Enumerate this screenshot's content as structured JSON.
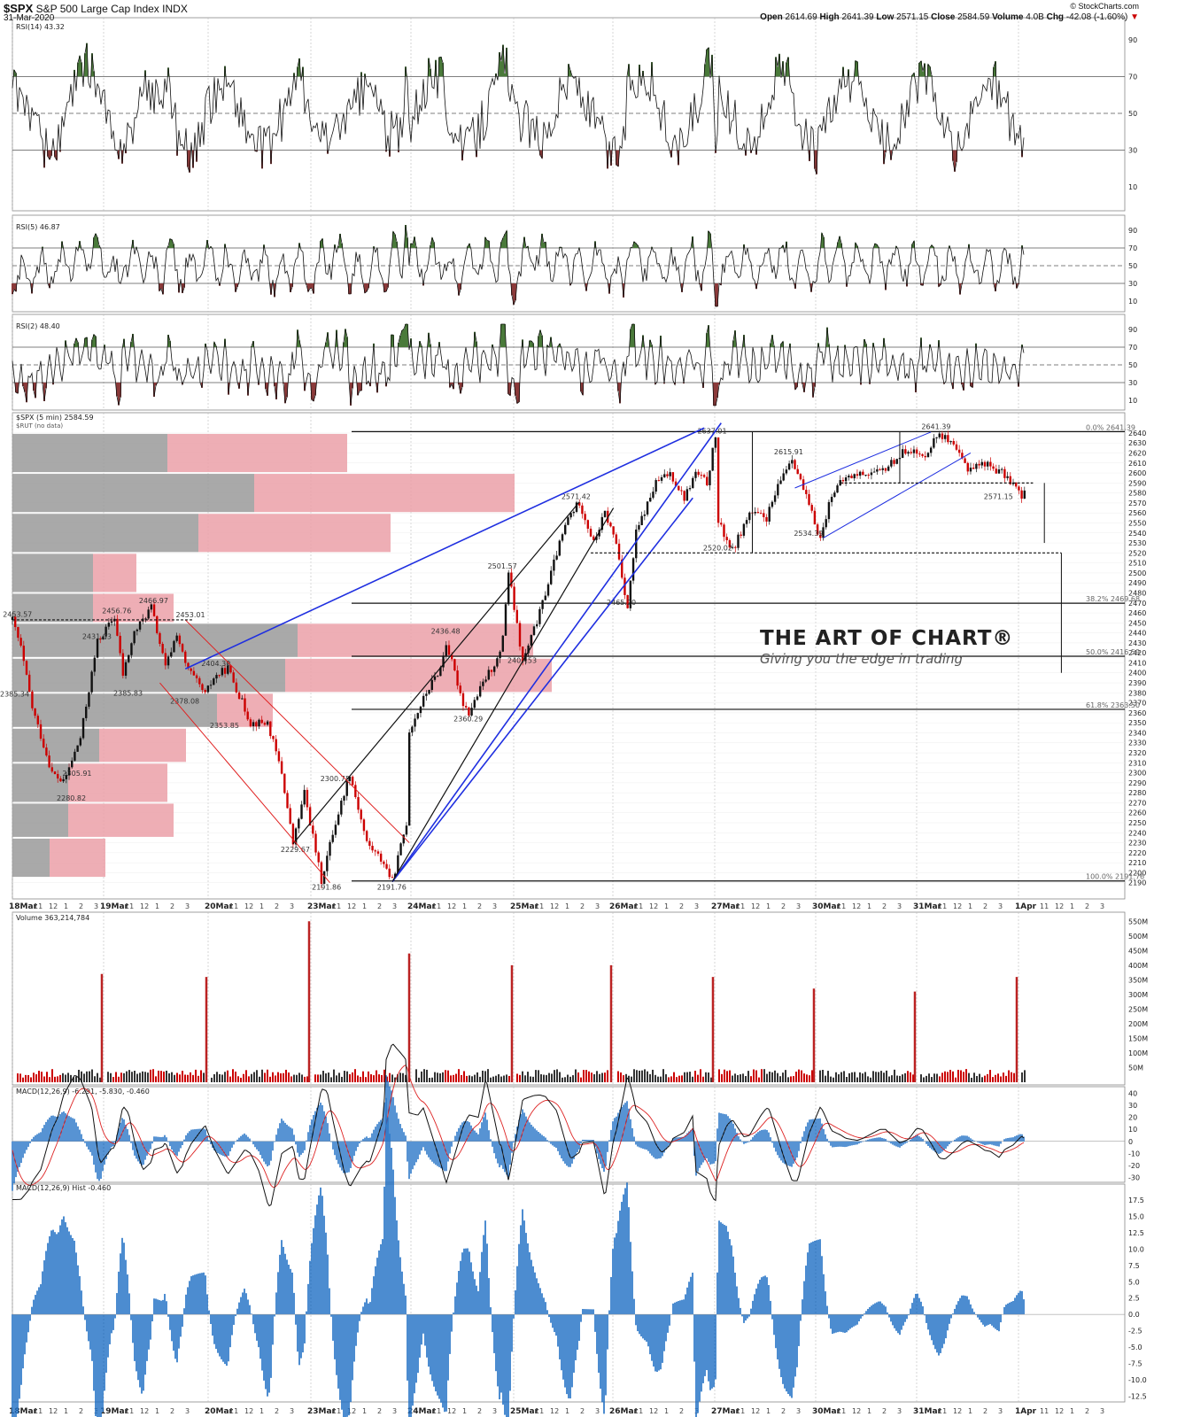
{
  "header": {
    "symbol": "$SPX",
    "name": "S&P 500 Large Cap Index",
    "exchange": "INDX",
    "date": "31-Mar-2020",
    "source": "© StockCharts.com",
    "open_label": "Open",
    "open": "2614.69",
    "high_label": "High",
    "high": "2641.39",
    "low_label": "Low",
    "low": "2571.15",
    "close_label": "Close",
    "close": "2584.59",
    "volume_label": "Volume",
    "volume": "4.0B",
    "chg_label": "Chg",
    "chg": "-42.08 (-1.60%)"
  },
  "watermark": {
    "title": "THE ART OF CHART®",
    "subtitle": "Giving you the edge in trading"
  },
  "colors": {
    "up": "#111111",
    "down": "#cc0000",
    "ob": "#4a7a3a",
    "os": "#8b3a3a",
    "blue": "#1f2fe0",
    "red_line": "#e02020",
    "vbp_red": "#eba0a8",
    "vbp_gray": "#9a9a9a",
    "macd_hist": "#1f6fc4"
  },
  "chart_data": [
    {
      "type": "line",
      "title": "RSI(14) 43.32",
      "ylim": [
        0,
        100
      ],
      "yticks": [
        10,
        30,
        50,
        70,
        90
      ],
      "levels": [
        30,
        50,
        70
      ],
      "last": 43.32
    },
    {
      "type": "line",
      "title": "RSI(5) 46.87",
      "ylim": [
        0,
        100
      ],
      "yticks": [
        10,
        30,
        50,
        70,
        90
      ],
      "levels": [
        30,
        50,
        70
      ],
      "last": 46.87
    },
    {
      "type": "line",
      "title": "RSI(2) 48.40",
      "ylim": [
        0,
        100
      ],
      "yticks": [
        10,
        30,
        50,
        70,
        90
      ],
      "levels": [
        30,
        50,
        70
      ],
      "last": 48.4
    },
    {
      "type": "candlestick",
      "title": "$SPX (5 min) 2584.59",
      "overlay": "$RUT (no data)",
      "ylim": [
        2180,
        2655
      ],
      "yticks": [
        2190,
        2200,
        2210,
        2220,
        2230,
        2240,
        2250,
        2260,
        2270,
        2280,
        2290,
        2300,
        2310,
        2320,
        2330,
        2340,
        2350,
        2360,
        2370,
        2380,
        2390,
        2400,
        2410,
        2420,
        2430,
        2440,
        2450,
        2460,
        2470,
        2480,
        2490,
        2500,
        2510,
        2520,
        2530,
        2540,
        2550,
        2560,
        2570,
        2580,
        2590,
        2600,
        2610,
        2620,
        2630,
        2640
      ],
      "days": [
        "18Mar",
        "19Mar",
        "20Mar",
        "23Mar",
        "24Mar",
        "25Mar",
        "26Mar",
        "27Mar",
        "30Mar",
        "31Mar",
        "1Apr"
      ],
      "hour_ticks": [
        "11",
        "12",
        "1",
        "2",
        "3"
      ],
      "path": [
        [
          0,
          2453
        ],
        [
          0.15,
          2425
        ],
        [
          0.35,
          2365
        ],
        [
          0.7,
          2300
        ],
        [
          0.9,
          2290
        ],
        [
          1.2,
          2335
        ],
        [
          1.5,
          2431
        ],
        [
          1.8,
          2456
        ],
        [
          1.95,
          2398
        ],
        [
          2.15,
          2440
        ],
        [
          2.45,
          2466
        ],
        [
          2.7,
          2405
        ],
        [
          2.9,
          2440
        ],
        [
          3.05,
          2408
        ],
        [
          3.4,
          2378
        ],
        [
          3.55,
          2395
        ],
        [
          3.8,
          2405
        ],
        [
          4.2,
          2350
        ],
        [
          4.5,
          2350
        ],
        [
          4.75,
          2300
        ],
        [
          4.95,
          2229
        ],
        [
          5.15,
          2280
        ],
        [
          5.45,
          2192
        ],
        [
          5.65,
          2240
        ],
        [
          5.95,
          2300
        ],
        [
          6.25,
          2230
        ],
        [
          6.55,
          2210
        ],
        [
          6.7,
          2191
        ],
        [
          6.95,
          2250
        ],
        [
          6.98,
          2340
        ],
        [
          7.3,
          2380
        ],
        [
          7.55,
          2405
        ],
        [
          7.65,
          2430
        ],
        [
          7.95,
          2370
        ],
        [
          8.05,
          2360
        ],
        [
          8.35,
          2395
        ],
        [
          8.62,
          2420
        ],
        [
          8.75,
          2501
        ],
        [
          9.0,
          2410
        ],
        [
          9.3,
          2460
        ],
        [
          9.6,
          2520
        ],
        [
          9.8,
          2555
        ],
        [
          10.0,
          2571
        ],
        [
          10.25,
          2530
        ],
        [
          10.45,
          2560
        ],
        [
          10.65,
          2530
        ],
        [
          10.85,
          2465
        ],
        [
          11.0,
          2540
        ],
        [
          11.35,
          2590
        ],
        [
          11.6,
          2600
        ],
        [
          11.85,
          2575
        ],
        [
          12.05,
          2600
        ],
        [
          12.25,
          2590
        ],
        [
          12.4,
          2637
        ],
        [
          12.45,
          2550
        ],
        [
          12.7,
          2522
        ],
        [
          13.0,
          2560
        ],
        [
          13.3,
          2555
        ],
        [
          13.6,
          2600
        ],
        [
          13.75,
          2616
        ],
        [
          14.0,
          2575
        ],
        [
          14.25,
          2534
        ],
        [
          14.45,
          2580
        ],
        [
          14.7,
          2595
        ],
        [
          15.0,
          2600
        ],
        [
          15.3,
          2600
        ],
        [
          15.5,
          2610
        ],
        [
          15.8,
          2625
        ],
        [
          16.05,
          2615
        ],
        [
          16.35,
          2641
        ],
        [
          16.6,
          2625
        ],
        [
          16.85,
          2605
        ],
        [
          17.15,
          2610
        ],
        [
          17.45,
          2600
        ],
        [
          17.65,
          2590
        ],
        [
          17.8,
          2575
        ],
        [
          17.9,
          2584
        ]
      ],
      "labels": [
        {
          "t": "2453.57",
          "x": 0.05,
          "y": 2453.57
        },
        {
          "t": "2385.34",
          "x": 0.0,
          "y": 2385.34
        },
        {
          "t": "2280.82",
          "x": 1.0,
          "y": 2280.82
        },
        {
          "t": "2305.91",
          "x": 1.1,
          "y": 2305.91
        },
        {
          "t": "2431.03",
          "x": 1.45,
          "y": 2431.03
        },
        {
          "t": "2456.76",
          "x": 1.8,
          "y": 2456.76
        },
        {
          "t": "2385.83",
          "x": 2.0,
          "y": 2385.83
        },
        {
          "t": "2466.97",
          "x": 2.45,
          "y": 2466.97
        },
        {
          "t": "2378.08",
          "x": 3.0,
          "y": 2378.08
        },
        {
          "t": "2453.01",
          "x": 3.1,
          "y": 2453.01
        },
        {
          "t": "2404.30",
          "x": 3.55,
          "y": 2404.3
        },
        {
          "t": "2353.85",
          "x": 3.7,
          "y": 2353.85
        },
        {
          "t": "2229.67",
          "x": 4.95,
          "y": 2229.67
        },
        {
          "t": "2191.86",
          "x": 5.5,
          "y": 2191.86
        },
        {
          "t": "2300.73",
          "x": 5.65,
          "y": 2300.73
        },
        {
          "t": "2191.76",
          "x": 6.65,
          "y": 2191.76
        },
        {
          "t": "2436.48",
          "x": 7.6,
          "y": 2436.48
        },
        {
          "t": "2360.29",
          "x": 8.0,
          "y": 2360.29
        },
        {
          "t": "2501.57",
          "x": 8.6,
          "y": 2501.57
        },
        {
          "t": "2407.53",
          "x": 8.95,
          "y": 2407.53
        },
        {
          "t": "2571.42",
          "x": 9.9,
          "y": 2571.42
        },
        {
          "t": "2465.20",
          "x": 10.7,
          "y": 2465.2
        },
        {
          "t": "2637.01",
          "x": 12.3,
          "y": 2637.01
        },
        {
          "t": "2520.02",
          "x": 12.4,
          "y": 2520.02
        },
        {
          "t": "2615.91",
          "x": 13.65,
          "y": 2615.91
        },
        {
          "t": "2534.39",
          "x": 14.0,
          "y": 2534.39
        },
        {
          "t": "2641.39",
          "x": 16.25,
          "y": 2641.39
        },
        {
          "t": "2571.15",
          "x": 17.35,
          "y": 2571.15
        }
      ],
      "fib": [
        {
          "label": "0.0% 2641.39",
          "y": 2641.39
        },
        {
          "label": "38.2% 2469.68",
          "y": 2469.68
        },
        {
          "label": "50.0% 2416.59",
          "y": 2416.59
        },
        {
          "label": "61.8% 2363.50",
          "y": 2363.5
        },
        {
          "label": "100.0% 2191.76",
          "y": 2191.76
        }
      ],
      "volume_by_price": [
        {
          "lo": 2600,
          "hi": 2640,
          "gray": 0.25,
          "red": 0.29
        },
        {
          "lo": 2560,
          "hi": 2600,
          "gray": 0.39,
          "red": 0.42
        },
        {
          "lo": 2520,
          "hi": 2560,
          "gray": 0.3,
          "red": 0.31
        },
        {
          "lo": 2480,
          "hi": 2520,
          "gray": 0.13,
          "red": 0.07
        },
        {
          "lo": 2450,
          "hi": 2480,
          "gray": 0.13,
          "red": 0.13
        },
        {
          "lo": 2415,
          "hi": 2450,
          "gray": 0.46,
          "red": 0.38
        },
        {
          "lo": 2380,
          "hi": 2415,
          "gray": 0.44,
          "red": 0.43
        },
        {
          "lo": 2345,
          "hi": 2380,
          "gray": 0.33,
          "red": 0.09
        },
        {
          "lo": 2310,
          "hi": 2345,
          "gray": 0.14,
          "red": 0.14
        },
        {
          "lo": 2270,
          "hi": 2310,
          "gray": 0.09,
          "red": 0.16
        },
        {
          "lo": 2235,
          "hi": 2270,
          "gray": 0.09,
          "red": 0.17
        },
        {
          "lo": 2195,
          "hi": 2235,
          "gray": 0.06,
          "red": 0.09
        }
      ]
    },
    {
      "type": "bar",
      "title": "Volume 363,214,784",
      "ylim": [
        0,
        560
      ],
      "yticks": [
        "50M",
        "100M",
        "150M",
        "200M",
        "250M",
        "300M",
        "350M",
        "400M",
        "450M",
        "500M",
        "550M"
      ],
      "spikes": [
        {
          "d": 1,
          "v": 370
        },
        {
          "d": 2,
          "v": 360
        },
        {
          "d": 3,
          "v": 550
        },
        {
          "d": 4,
          "v": 440
        },
        {
          "d": 5,
          "v": 400
        },
        {
          "d": 6,
          "v": 400
        },
        {
          "d": 7,
          "v": 360
        },
        {
          "d": 8,
          "v": 320
        },
        {
          "d": 9,
          "v": 310
        },
        {
          "d": 10,
          "v": 360
        }
      ],
      "last": 363214784
    },
    {
      "type": "line",
      "title": "MACD(12,26,9) -6.291, -5.830, -0.460",
      "ylim": [
        -32,
        42
      ],
      "yticks": [
        -30,
        -20,
        -10,
        0,
        10,
        20,
        30,
        40
      ],
      "last": {
        "macd": -6.291,
        "signal": -5.83,
        "hist": -0.46
      }
    },
    {
      "type": "bar",
      "title": "MACD(12,26,9) Hist -0.460",
      "ylim": [
        -13,
        19
      ],
      "yticks": [
        -12.5,
        -10.0,
        -7.5,
        -5.0,
        -2.5,
        0.0,
        2.5,
        5.0,
        7.5,
        10.0,
        12.5,
        15.0,
        17.5
      ],
      "last": -0.46
    }
  ]
}
